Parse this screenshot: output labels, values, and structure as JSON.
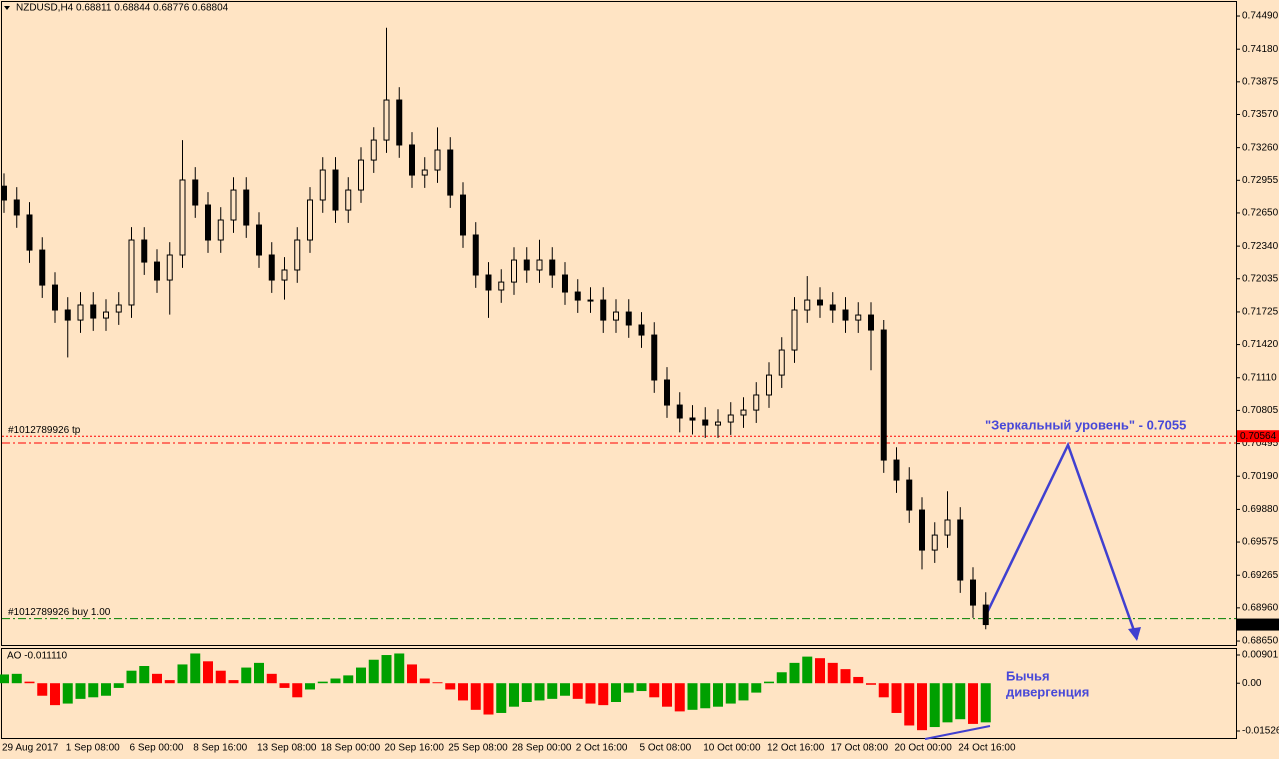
{
  "chart_data": [
    {
      "type": "candlestick",
      "title": "NZDUSD,H4  0.68811 0.68844 0.68776 0.68804",
      "categories": [
        "29 Aug 2017",
        null,
        null,
        null,
        null,
        "1 Sep 08:00",
        null,
        null,
        null,
        null,
        "6 Sep 00:00",
        null,
        null,
        null,
        null,
        "8 Sep 16:00",
        null,
        null,
        null,
        null,
        "13 Sep 08:00",
        null,
        null,
        null,
        null,
        "18 Sep 00:00",
        null,
        null,
        null,
        null,
        "20 Sep 16:00",
        null,
        null,
        null,
        null,
        "25 Sep 08:00",
        null,
        null,
        null,
        null,
        "28 Sep 00:00",
        null,
        null,
        null,
        null,
        "2 Oct 16:00",
        null,
        null,
        null,
        null,
        "5 Oct 08:00",
        null,
        null,
        null,
        null,
        "10 Oct 00:00",
        null,
        null,
        null,
        null,
        "12 Oct 16:00",
        null,
        null,
        null,
        null,
        "17 Oct 08:00",
        null,
        null,
        null,
        null,
        "20 Oct 00:00",
        null,
        null,
        null,
        null,
        "24 Oct 16:00",
        null,
        null
      ],
      "open": [
        0.729,
        0.72771,
        0.72631,
        0.72303,
        0.71976,
        0.71743,
        0.71649,
        0.7179,
        0.71668,
        0.71724,
        0.7179,
        0.72397,
        0.72191,
        0.72023,
        0.72257,
        0.72958,
        0.72724,
        0.72397,
        0.72584,
        0.72864,
        0.72537,
        0.72257,
        0.72023,
        0.72117,
        0.72397,
        0.72771,
        0.73051,
        0.72677,
        0.72864,
        0.73144,
        0.73331,
        0.73705,
        0.73285,
        0.73004,
        0.73051,
        0.73238,
        0.72817,
        0.72444,
        0.7207,
        0.7193,
        0.72004,
        0.7221,
        0.72117,
        0.7221,
        0.7207,
        0.71911,
        0.71836,
        0.71836,
        0.71649,
        0.71724,
        0.71603,
        0.71509,
        0.71089,
        0.70855,
        0.70734,
        0.70715,
        0.70668,
        0.70696,
        0.70762,
        0.70808,
        0.70949,
        0.71135,
        0.71369,
        0.71743,
        0.71836,
        0.7179,
        0.71743,
        0.71649,
        0.71696,
        0.71556,
        0.70341,
        0.70154,
        0.69874,
        0.695,
        0.6964,
        0.69781,
        0.6922,
        0.68986
      ],
      "high": [
        0.7302,
        0.72891,
        0.72751,
        0.72423,
        0.72096,
        0.71863,
        0.7191,
        0.7191,
        0.71844,
        0.7191,
        0.72517,
        0.72517,
        0.72311,
        0.72377,
        0.7333,
        0.73078,
        0.72844,
        0.72704,
        0.72984,
        0.72984,
        0.72657,
        0.72377,
        0.72237,
        0.72517,
        0.72891,
        0.73171,
        0.73171,
        0.72984,
        0.73264,
        0.73451,
        0.7438,
        0.73825,
        0.73405,
        0.73171,
        0.7345,
        0.73358,
        0.72937,
        0.72564,
        0.7219,
        0.72124,
        0.7233,
        0.7233,
        0.724,
        0.7233,
        0.7219,
        0.72031,
        0.71956,
        0.71956,
        0.71844,
        0.71844,
        0.71723,
        0.71629,
        0.71209,
        0.70975,
        0.70854,
        0.70835,
        0.70816,
        0.70882,
        0.70928,
        0.71069,
        0.71255,
        0.71489,
        0.71863,
        0.7206,
        0.71956,
        0.7191,
        0.71863,
        0.71816,
        0.71816,
        0.7165,
        0.70461,
        0.70274,
        0.69994,
        0.6976,
        0.7005,
        0.69901,
        0.6934,
        0.69106
      ],
      "low": [
        0.72651,
        0.72511,
        0.72183,
        0.71856,
        0.71623,
        0.713,
        0.71529,
        0.71548,
        0.71548,
        0.71604,
        0.7167,
        0.72071,
        0.71903,
        0.717,
        0.72137,
        0.72604,
        0.72277,
        0.72277,
        0.72464,
        0.72417,
        0.72137,
        0.71903,
        0.7184,
        0.71997,
        0.72277,
        0.72651,
        0.72557,
        0.72557,
        0.72744,
        0.73024,
        0.73211,
        0.73165,
        0.72884,
        0.72884,
        0.72931,
        0.72697,
        0.72324,
        0.7195,
        0.7167,
        0.7181,
        0.71884,
        0.71997,
        0.71997,
        0.7195,
        0.71791,
        0.71716,
        0.71716,
        0.71529,
        0.71529,
        0.71483,
        0.71389,
        0.70969,
        0.70735,
        0.706,
        0.7058,
        0.70548,
        0.70548,
        0.70576,
        0.70642,
        0.70688,
        0.70829,
        0.71015,
        0.71249,
        0.71623,
        0.7167,
        0.71623,
        0.71529,
        0.71529,
        0.7118,
        0.70221,
        0.70034,
        0.69754,
        0.6932,
        0.6938,
        0.6952,
        0.691,
        0.68866,
        0.6876
      ],
      "close": [
        0.72771,
        0.72631,
        0.72303,
        0.71976,
        0.71743,
        0.71649,
        0.7179,
        0.71668,
        0.71724,
        0.7179,
        0.72397,
        0.72191,
        0.72023,
        0.72257,
        0.72958,
        0.72724,
        0.72397,
        0.72584,
        0.72864,
        0.72537,
        0.72257,
        0.72023,
        0.72117,
        0.72397,
        0.72771,
        0.73051,
        0.72677,
        0.72864,
        0.73144,
        0.73331,
        0.73705,
        0.73285,
        0.73004,
        0.73051,
        0.73238,
        0.72817,
        0.72444,
        0.7207,
        0.7193,
        0.72004,
        0.7221,
        0.72117,
        0.7221,
        0.7207,
        0.71911,
        0.71836,
        0.71836,
        0.71649,
        0.71724,
        0.71603,
        0.71509,
        0.71089,
        0.70855,
        0.70734,
        0.70715,
        0.70668,
        0.70696,
        0.70762,
        0.70808,
        0.70949,
        0.71135,
        0.71369,
        0.71743,
        0.71836,
        0.7179,
        0.71743,
        0.71649,
        0.71696,
        0.71556,
        0.70341,
        0.70154,
        0.69874,
        0.695,
        0.6964,
        0.69781,
        0.6922,
        0.68986,
        0.68804
      ],
      "color": "#000000",
      "last_price_color": "#000000",
      "ylim": [
        0.68613,
        0.74621
      ],
      "yticks": [
        {
          "value": 0.7449,
          "label": "0.74490"
        },
        {
          "value": 0.7418,
          "label": "0.74180"
        },
        {
          "value": 0.73875,
          "label": "0.73875"
        },
        {
          "value": 0.7357,
          "label": "0.73570"
        },
        {
          "value": 0.7326,
          "label": "0.73260"
        },
        {
          "value": 0.72955,
          "label": "0.72955"
        },
        {
          "value": 0.7265,
          "label": "0.72650"
        },
        {
          "value": 0.7234,
          "label": "0.72340"
        },
        {
          "value": 0.72035,
          "label": "0.72035"
        },
        {
          "value": 0.71725,
          "label": "0.71725"
        },
        {
          "value": 0.7142,
          "label": "0.71420"
        },
        {
          "value": 0.7111,
          "label": "0.71110"
        },
        {
          "value": 0.70805,
          "label": "0.70805"
        },
        {
          "value": 0.70495,
          "label": "0.70495"
        },
        {
          "value": 0.7019,
          "label": "0.70190"
        },
        {
          "value": 0.6988,
          "label": "0.69880"
        },
        {
          "value": 0.69575,
          "label": "0.69575"
        },
        {
          "value": 0.69265,
          "label": "0.69265"
        },
        {
          "value": 0.6896,
          "label": "0.68960"
        },
        {
          "value": 0.6865,
          "label": "0.68650"
        }
      ],
      "levels": [
        {
          "label": "#1012789926 tp",
          "value": 0.70564,
          "color": "#ff0000",
          "style": "dotted",
          "price_box": true
        },
        {
          "value": 0.705,
          "color": "#ff0000",
          "style": "dashdot"
        },
        {
          "label": "#1012789926 buy 1.00",
          "value": 0.6886,
          "color": "#008000",
          "style": "dashdot"
        }
      ],
      "annotation": "\"Зеркальный уровень\" - 0.7055"
    },
    {
      "type": "bar",
      "title": "AO -0.011110",
      "values": [
        0.0028,
        0.003,
        0.0005,
        -0.004,
        -0.007,
        -0.0065,
        -0.005,
        -0.0045,
        -0.004,
        -0.0015,
        0.004,
        0.0055,
        0.003,
        0.001,
        0.006,
        0.0095,
        0.007,
        0.004,
        0.001,
        0.005,
        0.0065,
        0.003,
        -0.0015,
        -0.0045,
        -0.002,
        0.0005,
        0.0015,
        0.0025,
        0.005,
        0.0075,
        0.009,
        0.0095,
        0.006,
        0.0015,
        0.0003,
        -0.002,
        -0.0055,
        -0.0085,
        -0.01,
        -0.0095,
        -0.0075,
        -0.006,
        -0.0055,
        -0.005,
        -0.004,
        -0.005,
        -0.0065,
        -0.007,
        -0.006,
        -0.003,
        -0.0025,
        -0.0045,
        -0.0075,
        -0.009,
        -0.0085,
        -0.008,
        -0.0075,
        -0.0065,
        -0.0055,
        -0.003,
        0.0005,
        0.0035,
        0.0065,
        0.0085,
        0.008,
        0.0065,
        0.0045,
        0.002,
        -0.0005,
        -0.0045,
        -0.0095,
        -0.0135,
        -0.015,
        -0.014,
        -0.0125,
        -0.0115,
        -0.013,
        -0.0125
      ],
      "up_color": "#00a000",
      "down_color": "#ff0000",
      "ylim": [
        -0.0175,
        0.01125
      ],
      "yticks": [
        {
          "value": 0.00901,
          "label": "0.00901"
        },
        {
          "value": 0,
          "label": "0.00"
        },
        {
          "value": -0.015266,
          "label": "-0.015266"
        }
      ],
      "annotation": [
        "Бычья",
        "дивергенция"
      ]
    }
  ]
}
